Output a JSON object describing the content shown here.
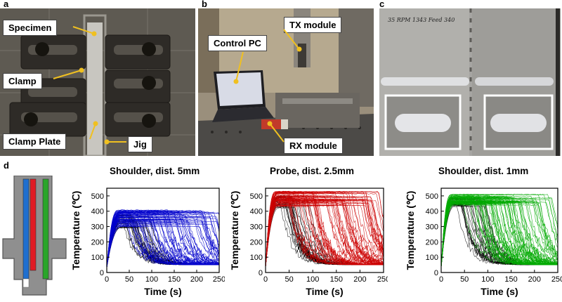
{
  "panels": {
    "a": {
      "letter": "a",
      "labels": {
        "specimen": "Specimen",
        "clamp": "Clamp",
        "clamp_plate": "Clamp Plate",
        "jig": "Jig"
      }
    },
    "b": {
      "letter": "b",
      "labels": {
        "tx_module": "TX module",
        "control_pc": "Control PC",
        "rx_module": "RX module"
      }
    },
    "c": {
      "letter": "c",
      "handwriting": "35 RPM 1343 Feed 340"
    },
    "d": {
      "letter": "d"
    }
  },
  "tool_schematic": {
    "channel_colors": [
      "#1f6fcf",
      "#e01b24",
      "#2aa52a"
    ]
  },
  "chart_data": [
    {
      "type": "line",
      "title": "Shoulder, dist. 5mm",
      "xlabel": "Time (s)",
      "ylabel": "Temperature (℃)",
      "xlim": [
        0,
        250
      ],
      "ylim": [
        0,
        550
      ],
      "xticks": [
        "0",
        "50",
        "100",
        "150",
        "200",
        "250"
      ],
      "yticks": [
        "0",
        "100",
        "200",
        "300",
        "400",
        "500"
      ],
      "series_color": "#0000cc",
      "reference_color": "#000000",
      "peak_range": [
        300,
        410
      ],
      "drop_time_range": [
        30,
        250
      ],
      "final_temperature": 50,
      "rise_time": 30
    },
    {
      "type": "line",
      "title": "Probe, dist. 2.5mm",
      "xlabel": "Time (s)",
      "ylabel": "Temperature (℃)",
      "xlim": [
        0,
        250
      ],
      "ylim": [
        0,
        550
      ],
      "xticks": [
        "0",
        "50",
        "100",
        "150",
        "200",
        "250"
      ],
      "yticks": [
        "0",
        "100",
        "200",
        "300",
        "400",
        "500"
      ],
      "series_color": "#cc0000",
      "reference_color": "#000000",
      "peak_range": [
        430,
        530
      ],
      "drop_time_range": [
        30,
        240
      ],
      "final_temperature": 50,
      "rise_time": 25
    },
    {
      "type": "line",
      "title": "Shoulder, dist. 1mm",
      "xlabel": "Time (s)",
      "ylabel": "Temperature (℃)",
      "xlim": [
        0,
        250
      ],
      "ylim": [
        0,
        550
      ],
      "xticks": [
        "0",
        "50",
        "100",
        "150",
        "200",
        "250"
      ],
      "yticks": [
        "0",
        "100",
        "200",
        "300",
        "400",
        "500"
      ],
      "series_color": "#00aa00",
      "reference_color": "#000000",
      "peak_range": [
        440,
        510
      ],
      "drop_time_range": [
        30,
        240
      ],
      "final_temperature": 50,
      "rise_time": 25
    }
  ]
}
